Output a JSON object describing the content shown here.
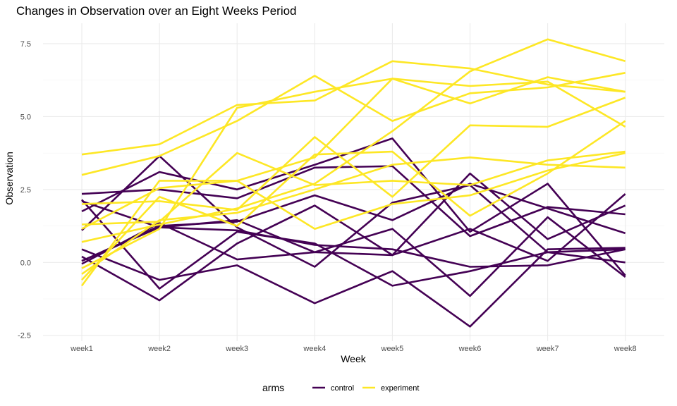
{
  "chart_data": {
    "type": "line",
    "title": "Changes in Observation over an Eight Weeks Period",
    "xlabel": "Week",
    "ylabel": "Observation",
    "categories": [
      "week1",
      "week2",
      "week3",
      "week4",
      "week5",
      "week6",
      "week7",
      "week8"
    ],
    "ylim": [
      -2.7,
      8.2
    ],
    "yticks": [
      -2.5,
      0.0,
      2.5,
      5.0,
      7.5
    ],
    "ytick_labels": [
      "-2.5",
      "0.0",
      "2.5",
      "5.0",
      "7.5"
    ],
    "grid": true,
    "legend": {
      "title": "arms",
      "position": "bottom",
      "entries": [
        {
          "label": "control",
          "color": "#440154"
        },
        {
          "label": "experiment",
          "color": "#FDE725"
        }
      ]
    },
    "series": [
      {
        "group": "control",
        "values": [
          2.35,
          2.5,
          2.2,
          3.25,
          3.3,
          0.9,
          1.9,
          1.65
        ]
      },
      {
        "group": "control",
        "values": [
          2.1,
          1.2,
          1.1,
          0.6,
          0.45,
          -0.15,
          -0.1,
          0.45
        ]
      },
      {
        "group": "control",
        "values": [
          1.1,
          3.65,
          1.2,
          -0.15,
          2.05,
          2.65,
          0.35,
          0.45
        ]
      },
      {
        "group": "control",
        "values": [
          0.05,
          1.2,
          1.45,
          0.35,
          0.25,
          1.15,
          0.05,
          2.35
        ]
      },
      {
        "group": "control",
        "values": [
          0.45,
          -0.6,
          -0.1,
          -1.4,
          -0.3,
          -2.2,
          0.45,
          0.5
        ]
      },
      {
        "group": "control",
        "values": [
          0.2,
          -1.3,
          0.65,
          1.95,
          0.25,
          3.05,
          0.8,
          1.95
        ]
      },
      {
        "group": "control",
        "values": [
          -0.05,
          1.35,
          0.1,
          0.35,
          1.15,
          -1.15,
          1.55,
          -0.5
        ]
      },
      {
        "group": "control",
        "values": [
          0.05,
          1.25,
          1.4,
          2.3,
          1.45,
          2.7,
          1.85,
          1.0
        ]
      },
      {
        "group": "control",
        "values": [
          2.15,
          -0.9,
          1.05,
          0.65,
          -0.8,
          -0.3,
          0.35,
          0.0
        ]
      },
      {
        "group": "control",
        "values": [
          1.75,
          3.1,
          2.5,
          3.35,
          4.25,
          1.05,
          2.7,
          -0.45
        ]
      },
      {
        "group": "experiment",
        "values": [
          3.7,
          4.05,
          5.4,
          5.55,
          6.9,
          6.65,
          6.1,
          5.85
        ]
      },
      {
        "group": "experiment",
        "values": [
          3.0,
          3.65,
          4.85,
          6.4,
          4.85,
          5.8,
          6.0,
          6.5
        ]
      },
      {
        "group": "experiment",
        "values": [
          1.15,
          2.55,
          2.8,
          3.6,
          6.3,
          5.45,
          6.35,
          5.85
        ]
      },
      {
        "group": "experiment",
        "values": [
          0.7,
          1.3,
          1.85,
          2.7,
          4.5,
          6.55,
          7.65,
          6.9
        ]
      },
      {
        "group": "experiment",
        "values": [
          -0.8,
          2.8,
          2.8,
          1.15,
          2.0,
          2.3,
          3.15,
          3.75
        ]
      },
      {
        "group": "experiment",
        "values": [
          -0.4,
          1.45,
          1.7,
          2.5,
          3.35,
          3.6,
          3.35,
          3.25
        ]
      },
      {
        "group": "experiment",
        "values": [
          1.3,
          1.4,
          3.75,
          2.65,
          2.8,
          2.65,
          3.5,
          3.8
        ]
      },
      {
        "group": "experiment",
        "values": [
          2.0,
          2.1,
          1.8,
          4.3,
          2.25,
          4.7,
          4.65,
          5.65
        ]
      },
      {
        "group": "experiment",
        "values": [
          -0.6,
          2.25,
          1.25,
          3.7,
          3.8,
          1.6,
          3.05,
          4.85
        ]
      },
      {
        "group": "experiment",
        "values": [
          -0.2,
          1.15,
          5.3,
          5.85,
          6.3,
          6.05,
          6.2,
          4.65
        ]
      }
    ]
  }
}
